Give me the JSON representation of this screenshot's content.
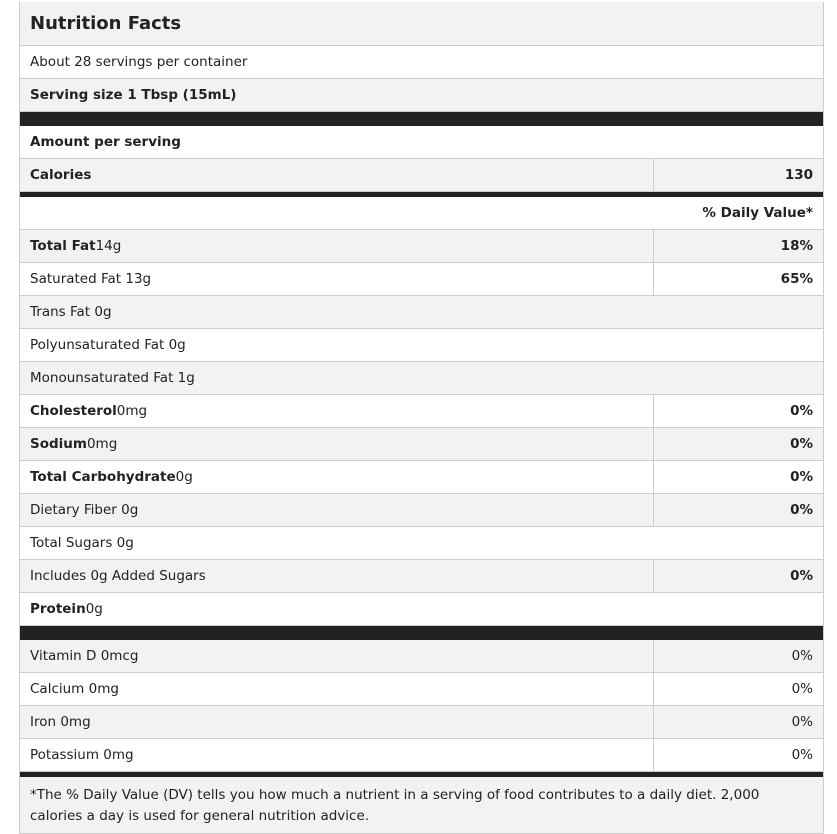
{
  "header": {
    "title": "Nutrition Facts",
    "servings": "About 28 servings per container",
    "serving_size": "Serving size 1 Tbsp (15mL)"
  },
  "amount_per_serving": "Amount per serving",
  "calories": {
    "label": "Calories",
    "value": 130
  },
  "daily_value_header": "% Daily Value*",
  "nutrients": [
    {
      "label": "Total Fat",
      "amount": "14g",
      "dv": "18%"
    },
    {
      "text": "Saturated Fat 13g",
      "dv": "65%"
    },
    {
      "text": "Trans Fat 0g"
    },
    {
      "text": "Polyunsaturated Fat 0g"
    },
    {
      "text": "Monounsaturated Fat 1g"
    },
    {
      "label": "Cholesterol",
      "amount": "0mg",
      "dv": "0%"
    },
    {
      "label": "Sodium",
      "amount": "0mg",
      "dv": "0%"
    },
    {
      "label": "Total Carbohydrate",
      "amount": "0g",
      "dv": "0%"
    },
    {
      "text": "Dietary Fiber 0g",
      "dv": "0%"
    },
    {
      "text": "Total Sugars 0g"
    },
    {
      "text": "Includes 0g Added Sugars",
      "dv": "0%"
    },
    {
      "label": "Protein",
      "amount": "0g"
    }
  ],
  "vitamins": [
    {
      "text": "Vitamin D 0mcg",
      "dv": "0%"
    },
    {
      "text": "Calcium 0mg",
      "dv": "0%"
    },
    {
      "text": "Iron 0mg",
      "dv": "0%"
    },
    {
      "text": "Potassium 0mg",
      "dv": "0%"
    }
  ],
  "footnote": "*The % Daily Value (DV) tells you how much a nutrient in a serving of food contributes to a daily diet. 2,000 calories a day is used for general nutrition advice."
}
